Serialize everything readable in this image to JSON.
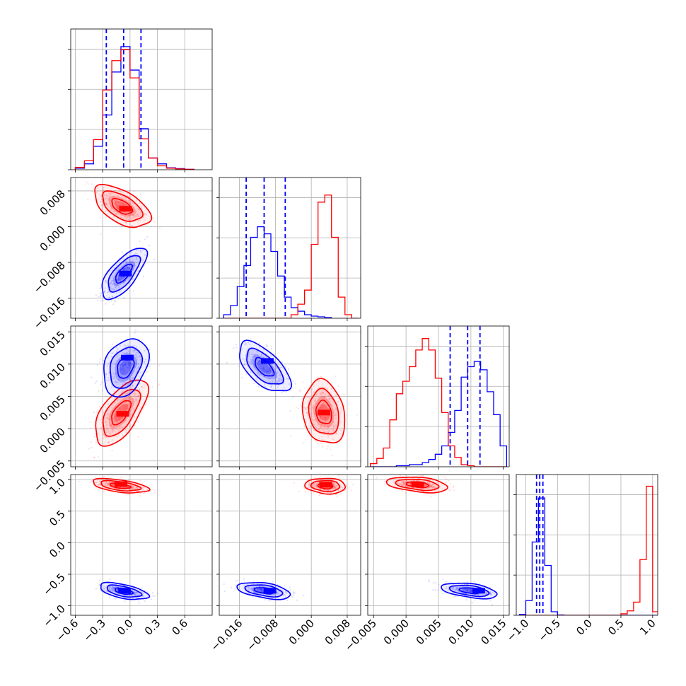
{
  "chart_data": {
    "type": "corner",
    "layout": "4x4 lower-triangle corner plot",
    "grid": true,
    "series": [
      {
        "color": "#0000ff"
      },
      {
        "color": "#ff0000"
      }
    ],
    "parameters": [
      {
        "range": [
          -0.65,
          0.9
        ],
        "ticks": [
          -0.6,
          -0.3,
          0.0,
          0.3,
          0.6
        ],
        "tick_labels": [
          "−0.6",
          "−0.3",
          "0.0",
          "0.3",
          "0.6"
        ],
        "hist_bins": [
          -0.6,
          -0.5,
          -0.4,
          -0.3,
          -0.2,
          -0.1,
          0.0,
          0.1,
          0.2,
          0.3,
          0.4,
          0.5,
          0.6,
          0.7,
          0.8
        ],
        "hist_blue": [
          0.4,
          1.5,
          6.0,
          14.0,
          25.0,
          31.5,
          25.5,
          10.5,
          3.0,
          1.5,
          0.5,
          0.3,
          0.1
        ],
        "hist_red": [
          0.6,
          2.3,
          7.7,
          20.4,
          27.9,
          30.7,
          23.5,
          7.9,
          3.0,
          1.0,
          0.4,
          0.2,
          0.1
        ],
        "quantiles": [
          -0.26,
          -0.07,
          0.12
        ],
        "hist_max": 36
      },
      {
        "range": [
          -0.0205,
          0.011
        ],
        "ticks": [
          -0.016,
          -0.008,
          0.0,
          0.008
        ],
        "tick_labels": [
          "−0.016",
          "−0.008",
          "0.000",
          "0.008"
        ],
        "hist_bins": [
          -0.0195,
          -0.018,
          -0.0165,
          -0.015,
          -0.0135,
          -0.012,
          -0.0105,
          -0.009,
          -0.0075,
          -0.006,
          -0.0045,
          -0.003,
          -0.0015,
          0.0,
          0.0015,
          0.003,
          0.0045,
          0.006,
          0.0075,
          0.009,
          0.0105
        ],
        "hist_blue": [
          0.5,
          1.8,
          4.5,
          7.5,
          11.5,
          13.0,
          12.0,
          9.5,
          6.0,
          3.0,
          1.5,
          1.0,
          0.5,
          0.3,
          0.2,
          0.1
        ],
        "hist_red": [
          0,
          0,
          0,
          0,
          0,
          0,
          0,
          0,
          0,
          0,
          0.5,
          2.0,
          4.0,
          10.5,
          16.5,
          17.5,
          11.5,
          3.0,
          0.5,
          0.0
        ],
        "quantiles": [
          -0.0145,
          -0.0105,
          -0.0058
        ],
        "hist_max": 20
      },
      {
        "range": [
          -0.0059,
          0.0159
        ],
        "ticks": [
          -0.005,
          0.0,
          0.005,
          0.01,
          0.015
        ],
        "tick_labels": [
          "−0.005",
          "0.000",
          "0.005",
          "0.010",
          "0.015"
        ],
        "hist_bins": [
          -0.0055,
          -0.0045,
          -0.0035,
          -0.0025,
          -0.0015,
          -0.0005,
          0.0005,
          0.0015,
          0.0025,
          0.0035,
          0.0045,
          0.0055,
          0.0065,
          0.0075,
          0.0085,
          0.0095,
          0.0105,
          0.0115,
          0.0125,
          0.0135,
          0.0145,
          0.0155
        ],
        "hist_blue": [
          0.0,
          0.0,
          0.0,
          0.0,
          0.1,
          0.1,
          0.2,
          0.2,
          0.4,
          0.7,
          1.2,
          2.0,
          3.3,
          5.4,
          8.6,
          9.6,
          10.1,
          9.3,
          7.2,
          5.0,
          2.0
        ],
        "hist_red": [
          0.3,
          0.8,
          1.8,
          4.5,
          7.0,
          8.2,
          9.6,
          11.2,
          12.3,
          11.2,
          8.5,
          5.2,
          2.0,
          0.9,
          0.2,
          0.1,
          0.0,
          0.0,
          0.0,
          0.0,
          0.0
        ],
        "quantiles": [
          0.0068,
          0.0095,
          0.0114
        ],
        "hist_max": 13.5
      },
      {
        "range": [
          -1.15,
          1.08
        ],
        "ticks": [
          -1.0,
          -0.5,
          0.0,
          0.5,
          1.0
        ],
        "tick_labels": [
          "−1.0",
          "−0.5",
          "0.0",
          "0.5",
          "1.0"
        ],
        "hist_bins": [
          -1.1,
          -1.0,
          -0.9,
          -0.8,
          -0.7,
          -0.6,
          -0.5,
          -0.4,
          -0.3,
          -0.2,
          -0.1,
          0.0,
          0.1,
          0.2,
          0.3,
          0.4,
          0.5,
          0.6,
          0.7,
          0.8,
          0.9,
          1.0,
          1.1
        ],
        "hist_blue": [
          0.3,
          5.0,
          25.0,
          40.0,
          17.0,
          1.2,
          0.1,
          0.0,
          0.0,
          0.0,
          0.0,
          0.0,
          0.0,
          0.0,
          0.0,
          0.0,
          0.0,
          0.0,
          0.0,
          0.0,
          0.0,
          0.0
        ],
        "hist_red": [
          0.0,
          0.0,
          0.0,
          0.0,
          0.0,
          0.0,
          0.0,
          0.0,
          0.0,
          0.0,
          0.0,
          0.0,
          0.0,
          0.0,
          0.0,
          0.0,
          0.5,
          1.5,
          4.5,
          19.0,
          44.0,
          1.2
        ],
        "quantiles": [
          -0.83,
          -0.78,
          -0.73
        ],
        "hist_max": 48
      }
    ],
    "pairs": [
      {
        "row": 1,
        "col": 0,
        "blue": {
          "center": [
            -0.07,
            -0.0105
          ],
          "sd": [
            0.12,
            0.0028
          ],
          "rho": 0.7,
          "peak": [
            -0.05,
            -0.0105
          ]
        },
        "red": {
          "center": [
            -0.09,
            0.0045
          ],
          "sd": [
            0.15,
            0.0023
          ],
          "rho": -0.55,
          "peak": [
            -0.05,
            0.004
          ]
        }
      },
      {
        "row": 2,
        "col": 0,
        "blue": {
          "center": [
            -0.05,
            0.0095
          ],
          "sd": [
            0.12,
            0.0022
          ],
          "rho": 0.3,
          "peak": [
            -0.03,
            0.011
          ]
        },
        "red": {
          "center": [
            -0.1,
            0.0025
          ],
          "sd": [
            0.14,
            0.0025
          ],
          "rho": 0.62,
          "peak": [
            -0.08,
            0.0023
          ]
        }
      },
      {
        "row": 2,
        "col": 1,
        "blue": {
          "center": [
            -0.0105,
            0.0095
          ],
          "sd": [
            0.0028,
            0.0019
          ],
          "rho": -0.62,
          "peak": [
            -0.0098,
            0.0105
          ]
        },
        "red": {
          "center": [
            0.0028,
            0.0025
          ],
          "sd": [
            0.0023,
            0.0024
          ],
          "rho": -0.18,
          "peak": [
            0.0028,
            0.0025
          ]
        }
      },
      {
        "row": 3,
        "col": 0,
        "blue": {
          "center": [
            -0.07,
            -0.77
          ],
          "sd": [
            0.13,
            0.065
          ],
          "rho": -0.55,
          "peak": [
            -0.06,
            -0.76
          ]
        },
        "red": {
          "center": [
            -0.11,
            0.9
          ],
          "sd": [
            0.15,
            0.055
          ],
          "rho": -0.5,
          "peak": [
            -0.1,
            0.93
          ]
        }
      },
      {
        "row": 3,
        "col": 1,
        "blue": {
          "center": [
            -0.0105,
            -0.76
          ],
          "sd": [
            0.0029,
            0.065
          ],
          "rho": -0.45,
          "peak": [
            -0.0092,
            -0.76
          ]
        },
        "red": {
          "center": [
            0.0032,
            0.9
          ],
          "sd": [
            0.0022,
            0.06
          ],
          "rho": -0.1,
          "peak": [
            0.0032,
            0.92
          ]
        }
      },
      {
        "row": 3,
        "col": 2,
        "blue": {
          "center": [
            0.0098,
            -0.76
          ],
          "sd": [
            0.0021,
            0.06
          ],
          "rho": -0.45,
          "peak": [
            0.0112,
            -0.76
          ]
        },
        "red": {
          "center": [
            0.0018,
            0.92
          ],
          "sd": [
            0.0023,
            0.06
          ],
          "rho": -0.35,
          "peak": [
            0.0018,
            0.92
          ]
        }
      }
    ]
  }
}
